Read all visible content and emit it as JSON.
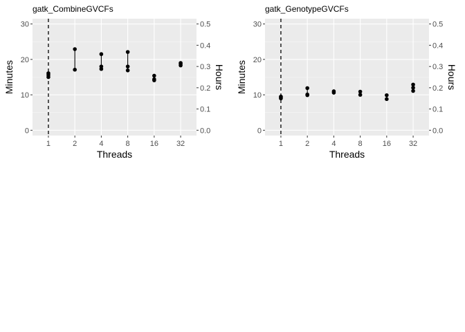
{
  "chart_data": [
    {
      "type": "scatter",
      "title": "gatk_CombineGVCFs",
      "xlabel": "Threads",
      "ylabel": "Minutes",
      "y2label": "Hours",
      "x_categories": [
        "1",
        "2",
        "4",
        "8",
        "16",
        "32"
      ],
      "ylim": [
        -1.5,
        31.5
      ],
      "yticks": [
        0,
        10,
        20,
        30
      ],
      "y2ticks": [
        "0.0",
        "0.1",
        "0.2",
        "0.3",
        "0.4",
        "0.5"
      ],
      "grid": true,
      "baseline_x": "1",
      "points": [
        {
          "x": "1",
          "y": [
            15.0,
            15.6,
            16.1
          ]
        },
        {
          "x": "2",
          "y": [
            17.1,
            22.9
          ]
        },
        {
          "x": "4",
          "y": [
            17.3,
            18.0,
            21.5
          ]
        },
        {
          "x": "8",
          "y": [
            16.9,
            18.0,
            22.1
          ]
        },
        {
          "x": "16",
          "y": [
            14.1,
            14.4,
            15.4
          ]
        },
        {
          "x": "32",
          "y": [
            18.3,
            18.7,
            19.0
          ]
        }
      ]
    },
    {
      "type": "scatter",
      "title": "gatk_GenotypeGVCFs",
      "xlabel": "Threads",
      "ylabel": "Minutes",
      "y2label": "Hours",
      "x_categories": [
        "1",
        "2",
        "4",
        "8",
        "16",
        "32"
      ],
      "ylim": [
        -1.5,
        31.5
      ],
      "yticks": [
        0,
        10,
        20,
        30
      ],
      "y2ticks": [
        "0.0",
        "0.1",
        "0.2",
        "0.3",
        "0.4",
        "0.5"
      ],
      "grid": true,
      "baseline_x": "1",
      "points": [
        {
          "x": "1",
          "y": [
            9.0,
            9.3,
            9.5
          ]
        },
        {
          "x": "2",
          "y": [
            9.9,
            10.1,
            11.9
          ]
        },
        {
          "x": "4",
          "y": [
            10.6,
            11.0
          ]
        },
        {
          "x": "8",
          "y": [
            10.0,
            10.9
          ]
        },
        {
          "x": "16",
          "y": [
            8.8,
            9.9
          ]
        },
        {
          "x": "32",
          "y": [
            11.1,
            12.0,
            12.9
          ]
        }
      ]
    }
  ]
}
